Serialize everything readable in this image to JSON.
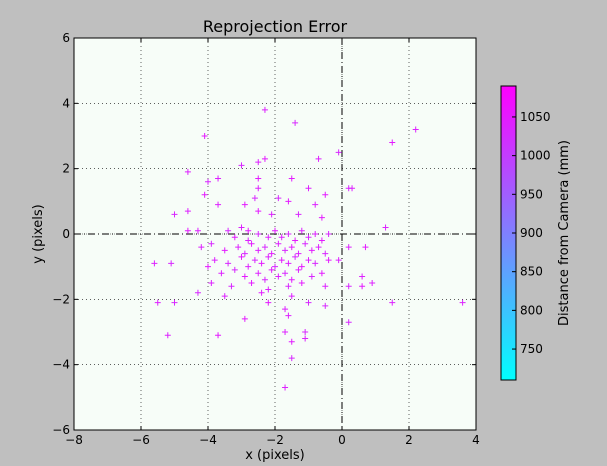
{
  "chart_data": {
    "type": "scatter",
    "title": "Reprojection Error",
    "xlabel": "x (pixels)",
    "ylabel": "y (pixels)",
    "xlim": [
      -8,
      4
    ],
    "ylim": [
      -6,
      6
    ],
    "xticks": [
      -8,
      -6,
      -4,
      -2,
      0,
      2,
      4
    ],
    "yticks": [
      -6,
      -4,
      -2,
      0,
      2,
      4,
      6
    ],
    "xtick_labels": [
      "−8",
      "−6",
      "−4",
      "−2",
      "0",
      "2",
      "4"
    ],
    "ytick_labels": [
      "−6",
      "−4",
      "−2",
      "0",
      "2",
      "4",
      "6"
    ],
    "grid": true,
    "marker": "+",
    "reference_lines": {
      "x": 0,
      "y": 0,
      "style": "dash-dot"
    },
    "colorbar": {
      "label": "Distance from Camera (mm)",
      "range": [
        710,
        1090
      ],
      "ticks": [
        750,
        800,
        850,
        900,
        950,
        1000,
        1050
      ],
      "tick_labels": [
        "750",
        "800",
        "850",
        "900",
        "950",
        "1000",
        "1050"
      ],
      "cmap_low": "#00ffff",
      "cmap_high": "#ff00ff"
    },
    "points": [
      [
        2.2,
        3.2,
        1040
      ],
      [
        1.5,
        2.8,
        1050
      ],
      [
        -2.3,
        3.8,
        1040
      ],
      [
        -1.4,
        3.4,
        1030
      ],
      [
        -4.1,
        3.0,
        1050
      ],
      [
        -2.3,
        2.3,
        1050
      ],
      [
        -2.5,
        2.2,
        1040
      ],
      [
        -3.0,
        2.1,
        1030
      ],
      [
        -0.7,
        2.3,
        1040
      ],
      [
        -0.1,
        2.5,
        1030
      ],
      [
        -4.6,
        1.9,
        1040
      ],
      [
        -4.0,
        1.6,
        1030
      ],
      [
        -3.7,
        1.7,
        1040
      ],
      [
        -2.5,
        1.7,
        1050
      ],
      [
        -1.5,
        1.7,
        1050
      ],
      [
        -1.0,
        1.4,
        1040
      ],
      [
        0.2,
        1.4,
        1030
      ],
      [
        0.3,
        1.4,
        1040
      ],
      [
        -4.1,
        1.2,
        1050
      ],
      [
        -2.5,
        1.4,
        1040
      ],
      [
        -2.6,
        1.1,
        1030
      ],
      [
        -0.5,
        1.2,
        1050
      ],
      [
        -3.7,
        0.9,
        1040
      ],
      [
        -2.9,
        0.9,
        1050
      ],
      [
        -1.9,
        1.1,
        1030
      ],
      [
        -1.6,
        1.0,
        1050
      ],
      [
        -0.8,
        0.9,
        1040
      ],
      [
        -5.0,
        0.6,
        1030
      ],
      [
        -4.6,
        0.7,
        1040
      ],
      [
        -2.5,
        0.7,
        1050
      ],
      [
        -2.1,
        0.6,
        1040
      ],
      [
        -1.3,
        0.6,
        1030
      ],
      [
        -0.6,
        0.5,
        1050
      ],
      [
        -4.3,
        0.1,
        1040
      ],
      [
        -4.6,
        0.1,
        1050
      ],
      [
        -3.4,
        0.1,
        1030
      ],
      [
        -3.0,
        0.2,
        1040
      ],
      [
        -2.8,
        0.1,
        1050
      ],
      [
        1.3,
        0.2,
        1040
      ],
      [
        -0.4,
        0.0,
        1030
      ],
      [
        -3.2,
        -0.1,
        1050
      ],
      [
        -2.8,
        -0.2,
        1040
      ],
      [
        -2.5,
        0.0,
        1030
      ],
      [
        -2.2,
        -0.1,
        1040
      ],
      [
        -2.0,
        0.1,
        1050
      ],
      [
        -1.8,
        -0.1,
        1040
      ],
      [
        -1.6,
        0.0,
        1030
      ],
      [
        -1.4,
        -0.2,
        1050
      ],
      [
        -1.2,
        0.1,
        1040
      ],
      [
        -1.0,
        -0.1,
        1030
      ],
      [
        -0.8,
        0.0,
        1040
      ],
      [
        -0.6,
        -0.2,
        1050
      ],
      [
        -4.2,
        -0.4,
        1040
      ],
      [
        -3.9,
        -0.3,
        1030
      ],
      [
        -3.5,
        -0.5,
        1050
      ],
      [
        -3.1,
        -0.4,
        1040
      ],
      [
        -2.9,
        -0.6,
        1030
      ],
      [
        -2.7,
        -0.3,
        1050
      ],
      [
        -2.5,
        -0.5,
        1040
      ],
      [
        -2.3,
        -0.4,
        1030
      ],
      [
        -2.1,
        -0.6,
        1050
      ],
      [
        -1.9,
        -0.3,
        1040
      ],
      [
        -1.7,
        -0.5,
        1030
      ],
      [
        -1.5,
        -0.4,
        1050
      ],
      [
        -1.3,
        -0.6,
        1040
      ],
      [
        -1.1,
        -0.3,
        1030
      ],
      [
        -0.9,
        -0.5,
        1050
      ],
      [
        -0.7,
        -0.4,
        1040
      ],
      [
        -0.5,
        -0.6,
        1030
      ],
      [
        0.2,
        -0.4,
        1040
      ],
      [
        0.7,
        -0.4,
        1050
      ],
      [
        -3.8,
        -0.8,
        1040
      ],
      [
        -3.4,
        -0.9,
        1030
      ],
      [
        -3.0,
        -0.7,
        1050
      ],
      [
        -2.8,
        -1.0,
        1040
      ],
      [
        -2.6,
        -0.8,
        1030
      ],
      [
        -2.4,
        -0.9,
        1050
      ],
      [
        -2.2,
        -0.7,
        1040
      ],
      [
        -2.0,
        -1.0,
        1030
      ],
      [
        -1.8,
        -0.8,
        1050
      ],
      [
        -1.6,
        -0.9,
        1040
      ],
      [
        -1.4,
        -0.7,
        1030
      ],
      [
        -1.2,
        -1.0,
        1050
      ],
      [
        -1.0,
        -0.8,
        1040
      ],
      [
        -0.8,
        -0.9,
        1030
      ],
      [
        -0.4,
        -0.8,
        1050
      ],
      [
        -0.1,
        -0.8,
        1040
      ],
      [
        -5.6,
        -0.9,
        1040
      ],
      [
        -5.1,
        -0.9,
        1030
      ],
      [
        -4.0,
        -1.0,
        1050
      ],
      [
        -3.6,
        -1.2,
        1040
      ],
      [
        -3.2,
        -1.1,
        1030
      ],
      [
        -2.9,
        -1.3,
        1050
      ],
      [
        -2.5,
        -1.2,
        1040
      ],
      [
        -2.3,
        -1.4,
        1030
      ],
      [
        -2.1,
        -1.1,
        1050
      ],
      [
        -1.9,
        -1.3,
        1040
      ],
      [
        -1.7,
        -1.2,
        1030
      ],
      [
        -1.5,
        -1.4,
        1050
      ],
      [
        -1.3,
        -1.1,
        1040
      ],
      [
        -0.9,
        -1.3,
        1030
      ],
      [
        -0.6,
        -1.2,
        1050
      ],
      [
        0.6,
        -1.3,
        1040
      ],
      [
        -3.9,
        -1.5,
        1040
      ],
      [
        -3.3,
        -1.6,
        1030
      ],
      [
        -2.7,
        -1.5,
        1050
      ],
      [
        -2.2,
        -1.7,
        1040
      ],
      [
        -1.6,
        -1.6,
        1030
      ],
      [
        -1.2,
        -1.5,
        1050
      ],
      [
        -0.5,
        -1.6,
        1040
      ],
      [
        0.2,
        -1.6,
        1030
      ],
      [
        0.6,
        -1.6,
        1050
      ],
      [
        0.9,
        -1.5,
        1040
      ],
      [
        -4.3,
        -1.8,
        1030
      ],
      [
        -3.5,
        -1.9,
        1040
      ],
      [
        -2.4,
        -1.8,
        1050
      ],
      [
        -1.5,
        -1.9,
        1040
      ],
      [
        -1.0,
        -2.1,
        1030
      ],
      [
        1.5,
        -2.1,
        1040
      ],
      [
        -5.5,
        -2.1,
        1040
      ],
      [
        -5.0,
        -2.1,
        1030
      ],
      [
        -2.2,
        -2.1,
        1050
      ],
      [
        -1.7,
        -2.3,
        1040
      ],
      [
        -0.5,
        -2.2,
        1030
      ],
      [
        3.6,
        -2.1,
        1040
      ],
      [
        -2.9,
        -2.6,
        1050
      ],
      [
        -1.6,
        -2.5,
        1040
      ],
      [
        0.2,
        -2.7,
        1030
      ],
      [
        -5.2,
        -3.1,
        1040
      ],
      [
        -3.7,
        -3.1,
        1050
      ],
      [
        -1.7,
        -3.0,
        1040
      ],
      [
        -1.1,
        -3.0,
        1030
      ],
      [
        -1.5,
        -3.3,
        1050
      ],
      [
        -1.1,
        -3.2,
        1040
      ],
      [
        -1.5,
        -3.8,
        1030
      ],
      [
        -1.7,
        -4.7,
        1040
      ]
    ]
  }
}
